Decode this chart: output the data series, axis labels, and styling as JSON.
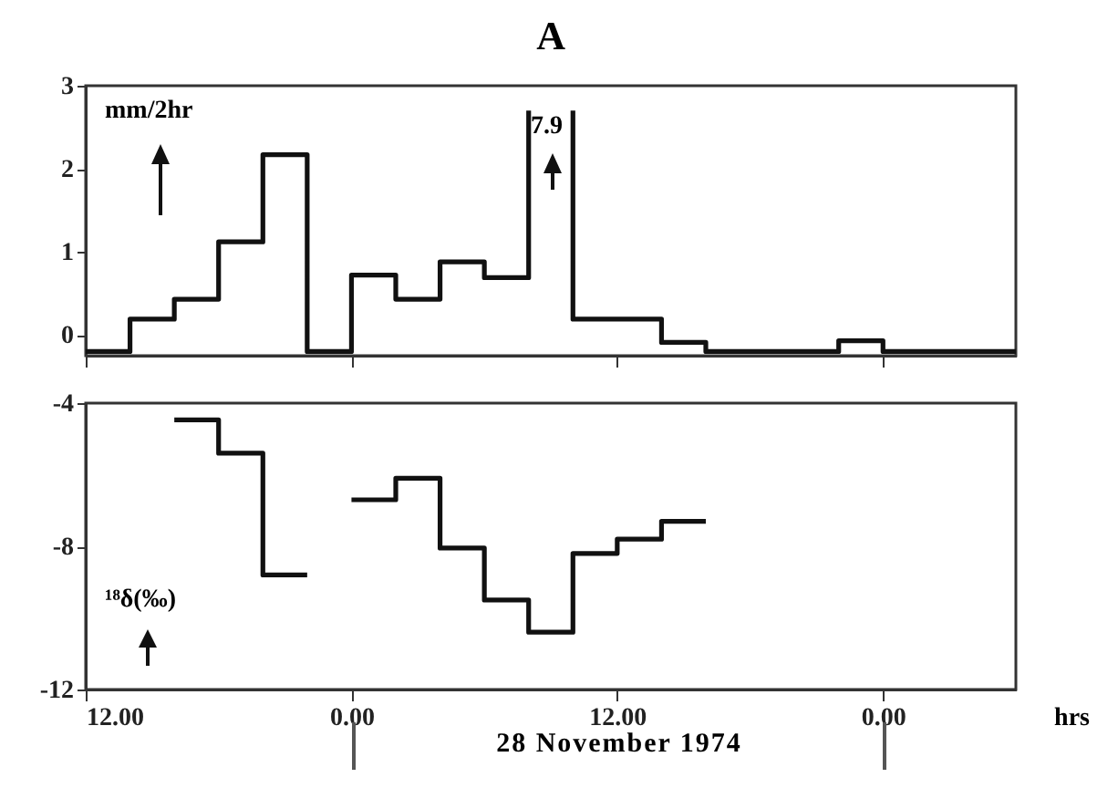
{
  "chart_data": [
    {
      "type": "line",
      "title": "A",
      "ylabel": "mm/2hr",
      "color": "#111111",
      "marker": "none",
      "x": [
        "1974-11-27T12:00",
        "1974-11-27T14:00",
        "1974-11-27T14:00",
        "1974-11-27T16:00",
        "1974-11-27T16:00",
        "1974-11-27T18:00",
        "1974-11-27T18:00",
        "1974-11-27T20:00",
        "1974-11-27T20:00",
        "1974-11-27T22:00",
        "1974-11-27T22:00",
        "1974-11-28T00:00",
        "1974-11-28T00:00",
        "1974-11-28T02:00",
        "1974-11-28T02:00",
        "1974-11-28T04:00",
        "1974-11-28T04:00",
        "1974-11-28T06:00",
        "1974-11-28T06:00",
        "1974-11-28T08:00",
        "1974-11-28T08:00",
        "1974-11-28T09:00",
        "1974-11-28T10:00",
        "1974-11-28T10:00",
        "1974-11-28T12:00",
        "1974-11-28T14:00",
        "1974-11-28T14:00",
        "1974-11-28T16:00",
        "1974-11-28T16:00",
        "1974-11-28T22:00",
        "1974-11-28T22:00",
        "1974-11-29T00:00",
        "1974-11-29T00:00",
        "1974-11-29T06:00"
      ],
      "values": [
        -0.2,
        -0.2,
        0.19,
        0.19,
        0.43,
        0.43,
        1.12,
        1.12,
        2.17,
        2.17,
        -0.2,
        -0.2,
        0.72,
        0.72,
        0.43,
        0.43,
        0.88,
        0.88,
        0.69,
        0.69,
        2.7,
        null,
        2.7,
        0.19,
        0.19,
        0.19,
        -0.09,
        -0.09,
        -0.2,
        -0.2,
        -0.07,
        -0.07,
        -0.2,
        -0.2
      ],
      "xlim": [
        "1974-11-27T12:00",
        "1974-11-29T06:00"
      ],
      "xticks": [
        "1974-11-27T12:00",
        "1974-11-28T00:00",
        "1974-11-28T12:00",
        "1974-11-29T00:00"
      ],
      "ylim": [
        -0.25,
        3
      ],
      "yticks": [
        0,
        1,
        2,
        3
      ],
      "tick_labels": "y",
      "annotations": [
        "7.9"
      ]
    },
    {
      "type": "line",
      "ylabel": "¹⁸δ(‰)",
      "xlabel": "hrs",
      "color": "#111111",
      "marker": "none",
      "x": [
        "1974-11-27T16:00",
        "1974-11-27T18:00",
        "1974-11-27T18:00",
        "1974-11-27T20:00",
        "1974-11-27T20:00",
        "1974-11-27T22:00",
        "1974-11-27T23:00",
        "1974-11-28T00:00",
        "1974-11-28T02:00",
        "1974-11-28T02:00",
        "1974-11-28T04:00",
        "1974-11-28T04:00",
        "1974-11-28T06:00",
        "1974-11-28T06:00",
        "1974-11-28T08:00",
        "1974-11-28T08:00",
        "1974-11-28T10:00",
        "1974-11-28T10:00",
        "1974-11-28T12:00",
        "1974-11-28T12:00",
        "1974-11-28T14:00",
        "1974-11-28T14:00",
        "1974-11-28T16:00"
      ],
      "values": [
        -4.47,
        -4.47,
        -5.4,
        -5.4,
        -8.8,
        -8.8,
        null,
        -6.7,
        -6.7,
        -6.1,
        -6.1,
        -8.05,
        -8.05,
        -9.5,
        -9.5,
        -10.4,
        -10.4,
        -8.2,
        -8.2,
        -7.8,
        -7.8,
        -7.3,
        -7.3
      ],
      "xlim": [
        "1974-11-27T12:00",
        "1974-11-29T06:00"
      ],
      "xticks": [
        {
          "value": "1974-11-27T12:00",
          "label": "12.00"
        },
        {
          "value": "1974-11-28T00:00",
          "label": "0.00"
        },
        {
          "value": "1974-11-28T12:00",
          "label": "12.00"
        },
        {
          "value": "1974-11-29T00:00",
          "label": "0.00"
        }
      ],
      "ylim": [
        -12,
        -4
      ],
      "yticks": [
        -12,
        -8,
        -4
      ],
      "annotations": [
        "28 November 1974"
      ]
    }
  ]
}
